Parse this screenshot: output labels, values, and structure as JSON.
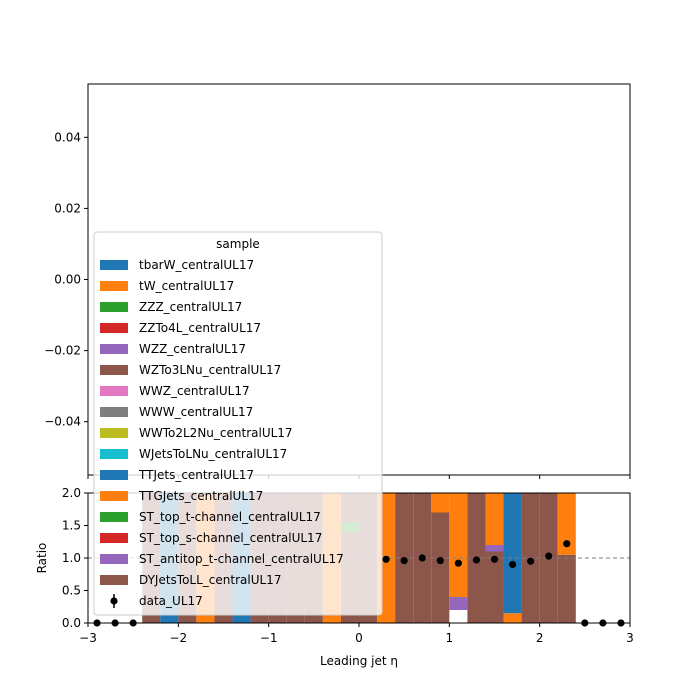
{
  "chart_data": [
    {
      "type": "stacked-histogram",
      "panel": "main",
      "xlim": [
        -3,
        3
      ],
      "ylim": [
        -0.055,
        0.055
      ],
      "yticks": [
        -0.04,
        -0.02,
        0.0,
        0.02,
        0.04
      ],
      "ytick_labels": [
        "−0.04",
        "−0.02",
        "0.00",
        "0.02",
        "0.04"
      ],
      "legend": {
        "title": "sample",
        "placement": "lower-left",
        "entries": [
          {
            "label": "tbarW_centralUL17",
            "color": "#1f77b4",
            "kind": "patch"
          },
          {
            "label": "tW_centralUL17",
            "color": "#ff7f0e",
            "kind": "patch"
          },
          {
            "label": "ZZZ_centralUL17",
            "color": "#2ca02c",
            "kind": "patch"
          },
          {
            "label": "ZZTo4L_centralUL17",
            "color": "#d62728",
            "kind": "patch"
          },
          {
            "label": "WZZ_centralUL17",
            "color": "#9467bd",
            "kind": "patch"
          },
          {
            "label": "WZTo3LNu_centralUL17",
            "color": "#8c564b",
            "kind": "patch"
          },
          {
            "label": "WWZ_centralUL17",
            "color": "#e377c2",
            "kind": "patch"
          },
          {
            "label": "WWW_centralUL17",
            "color": "#7f7f7f",
            "kind": "patch"
          },
          {
            "label": "WWTo2L2Nu_centralUL17",
            "color": "#bcbd22",
            "kind": "patch"
          },
          {
            "label": "WJetsToLNu_centralUL17",
            "color": "#17becf",
            "kind": "patch"
          },
          {
            "label": "TTJets_centralUL17",
            "color": "#1f77b4",
            "kind": "patch"
          },
          {
            "label": "TTGJets_centralUL17",
            "color": "#ff7f0e",
            "kind": "patch"
          },
          {
            "label": "ST_top_t-channel_centralUL17",
            "color": "#2ca02c",
            "kind": "patch"
          },
          {
            "label": "ST_top_s-channel_centralUL17",
            "color": "#d62728",
            "kind": "patch"
          },
          {
            "label": "ST_antitop_t-channel_centralUL17",
            "color": "#9467bd",
            "kind": "patch"
          },
          {
            "label": "DYJetsToLL_centralUL17",
            "color": "#8c564b",
            "kind": "patch"
          },
          {
            "label": "data_UL17",
            "color": "#000000",
            "kind": "errorbar"
          }
        ]
      }
    },
    {
      "type": "bar+scatter",
      "panel": "ratio",
      "xlabel": "Leading jet  η",
      "ylabel": "Ratio",
      "xlim": [
        -3,
        3
      ],
      "ylim": [
        0,
        2
      ],
      "xticks": [
        -3,
        -2,
        -1,
        0,
        1,
        2,
        3
      ],
      "xtick_labels": [
        "−3",
        "−2",
        "−1",
        "0",
        "1",
        "2",
        "3"
      ],
      "yticks": [
        0.0,
        0.5,
        1.0,
        1.5,
        2.0
      ],
      "ytick_labels": [
        "0.0",
        "0.5",
        "1.0",
        "1.5",
        "2.0"
      ],
      "reference_line": 1.0,
      "ratio_bars": [
        {
          "x0": -2.4,
          "x1": -2.2,
          "segments": [
            {
              "color": "#8c564b",
              "from": 0,
              "to": 2
            }
          ]
        },
        {
          "x0": -2.2,
          "x1": -2.0,
          "segments": [
            {
              "color": "#1f77b4",
              "from": 0,
              "to": 2
            }
          ]
        },
        {
          "x0": -2.0,
          "x1": -1.8,
          "segments": [
            {
              "color": "#8c564b",
              "from": 0,
              "to": 2
            }
          ]
        },
        {
          "x0": -1.8,
          "x1": -1.6,
          "segments": [
            {
              "color": "#ff7f0e",
              "from": 0,
              "to": 2
            }
          ]
        },
        {
          "x0": -1.6,
          "x1": -1.4,
          "segments": [
            {
              "color": "#8c564b",
              "from": 0,
              "to": 2
            }
          ]
        },
        {
          "x0": -1.4,
          "x1": -1.2,
          "segments": [
            {
              "color": "#1f77b4",
              "from": 0,
              "to": 2
            }
          ]
        },
        {
          "x0": -1.2,
          "x1": -1.0,
          "segments": [
            {
              "color": "#8c564b",
              "from": 0,
              "to": 2
            }
          ]
        },
        {
          "x0": -1.0,
          "x1": -0.8,
          "segments": [
            {
              "color": "#8c564b",
              "from": 0,
              "to": 2
            }
          ]
        },
        {
          "x0": -0.8,
          "x1": -0.6,
          "segments": [
            {
              "color": "#8c564b",
              "from": 0,
              "to": 2
            }
          ]
        },
        {
          "x0": -0.6,
          "x1": -0.4,
          "segments": [
            {
              "color": "#8c564b",
              "from": 0,
              "to": 2
            }
          ]
        },
        {
          "x0": -0.4,
          "x1": -0.2,
          "segments": [
            {
              "color": "#ff7f0e",
              "from": 0,
              "to": 2
            }
          ]
        },
        {
          "x0": -0.2,
          "x1": 0.0,
          "segments": [
            {
              "color": "#8c564b",
              "from": 0,
              "to": 2
            },
            {
              "color": "#2ca02c",
              "from": 1.4,
              "to": 1.55
            }
          ]
        },
        {
          "x0": 0.0,
          "x1": 0.2,
          "segments": [
            {
              "color": "#8c564b",
              "from": 0,
              "to": 2
            }
          ]
        },
        {
          "x0": 0.2,
          "x1": 0.4,
          "segments": [
            {
              "color": "#ff7f0e",
              "from": 0,
              "to": 2
            }
          ]
        },
        {
          "x0": 0.4,
          "x1": 0.6,
          "segments": [
            {
              "color": "#8c564b",
              "from": 0,
              "to": 2
            }
          ]
        },
        {
          "x0": 0.6,
          "x1": 0.8,
          "segments": [
            {
              "color": "#8c564b",
              "from": 0,
              "to": 2
            }
          ]
        },
        {
          "x0": 0.8,
          "x1": 1.0,
          "segments": [
            {
              "color": "#8c564b",
              "from": 0,
              "to": 1.7
            },
            {
              "color": "#ff7f0e",
              "from": 1.7,
              "to": 2
            }
          ]
        },
        {
          "x0": 1.0,
          "x1": 1.2,
          "segments": [
            {
              "color": "#9467bd",
              "from": 0.2,
              "to": 0.4
            },
            {
              "color": "#ff7f0e",
              "from": 0.4,
              "to": 2
            }
          ]
        },
        {
          "x0": 1.2,
          "x1": 1.4,
          "segments": [
            {
              "color": "#8c564b",
              "from": 0,
              "to": 2
            }
          ]
        },
        {
          "x0": 1.4,
          "x1": 1.6,
          "segments": [
            {
              "color": "#8c564b",
              "from": 0,
              "to": 1.1
            },
            {
              "color": "#9467bd",
              "from": 1.1,
              "to": 1.2
            },
            {
              "color": "#ff7f0e",
              "from": 1.2,
              "to": 2
            }
          ]
        },
        {
          "x0": 1.6,
          "x1": 1.8,
          "segments": [
            {
              "color": "#ff7f0e",
              "from": 0,
              "to": 0.15
            },
            {
              "color": "#1f77b4",
              "from": 0.15,
              "to": 2
            }
          ]
        },
        {
          "x0": 1.8,
          "x1": 2.0,
          "segments": [
            {
              "color": "#8c564b",
              "from": 0,
              "to": 2
            }
          ]
        },
        {
          "x0": 2.0,
          "x1": 2.2,
          "segments": [
            {
              "color": "#8c564b",
              "from": 0,
              "to": 2
            }
          ]
        },
        {
          "x0": 2.2,
          "x1": 2.4,
          "segments": [
            {
              "color": "#8c564b",
              "from": 0,
              "to": 1.05
            },
            {
              "color": "#ff7f0e",
              "from": 1.05,
              "to": 2
            }
          ]
        }
      ],
      "points": [
        {
          "x": -2.9,
          "y": 0.0
        },
        {
          "x": -2.7,
          "y": 0.0
        },
        {
          "x": -2.5,
          "y": 0.0
        },
        {
          "x": 0.3,
          "y": 0.98
        },
        {
          "x": 0.5,
          "y": 0.96
        },
        {
          "x": 0.7,
          "y": 1.0
        },
        {
          "x": 0.9,
          "y": 0.96
        },
        {
          "x": 1.1,
          "y": 0.92
        },
        {
          "x": 1.3,
          "y": 0.97
        },
        {
          "x": 1.5,
          "y": 0.98
        },
        {
          "x": 1.7,
          "y": 0.9
        },
        {
          "x": 1.9,
          "y": 0.95
        },
        {
          "x": 2.1,
          "y": 1.03
        },
        {
          "x": 2.3,
          "y": 1.22
        },
        {
          "x": 2.5,
          "y": 0.0
        },
        {
          "x": 2.7,
          "y": 0.0
        },
        {
          "x": 2.9,
          "y": 0.0
        }
      ]
    }
  ]
}
